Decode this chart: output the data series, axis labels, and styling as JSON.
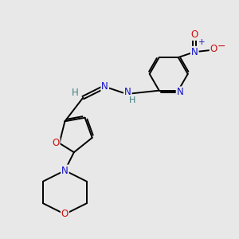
{
  "background_color": "#e8e8e8",
  "bond_color": "#000000",
  "N_color": "#1010cc",
  "O_color": "#cc1010",
  "CH_color": "#408080",
  "figsize": [
    3.0,
    3.0
  ],
  "dpi": 100,
  "xlim": [
    -3.5,
    8.5
  ],
  "ylim": [
    -7.5,
    5.5
  ]
}
